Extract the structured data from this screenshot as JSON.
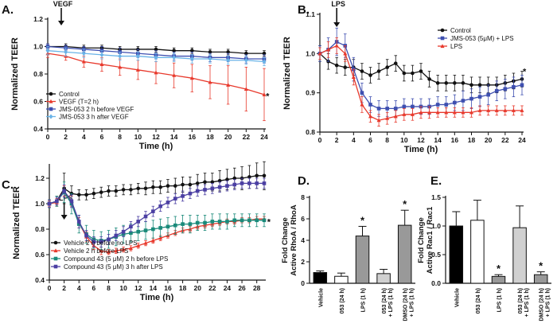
{
  "chart_data": [
    {
      "id": "A",
      "panel_label": "A.",
      "type": "line",
      "annotation": "VEGF",
      "annotation_x": 1.5,
      "xlabel": "Time (h)",
      "ylabel": "Normalized TEER",
      "xlim": [
        0,
        24
      ],
      "ylim": [
        0.4,
        1.2
      ],
      "xticks": [
        0,
        2,
        4,
        6,
        8,
        10,
        12,
        14,
        16,
        18,
        20,
        22,
        24
      ],
      "yticks": [
        0.4,
        0.6,
        0.8,
        1.0,
        1.2
      ],
      "ytick_labels": [
        "0.4",
        "0.6",
        "0.8",
        "1.0",
        "1.2"
      ],
      "star_text": "*",
      "star_x": 24.1,
      "star_y": 0.64,
      "legend_position": "bottom-left",
      "series": [
        {
          "name": "Control",
          "color": "#111111",
          "marker": "circle",
          "x": [
            0,
            2,
            4,
            6,
            8,
            10,
            12,
            14,
            16,
            18,
            20,
            22,
            24
          ],
          "y": [
            1.0,
            1.0,
            0.99,
            0.99,
            0.98,
            0.98,
            0.98,
            0.97,
            0.97,
            0.96,
            0.96,
            0.95,
            0.95
          ],
          "err": [
            0.02,
            0.02,
            0.02,
            0.02,
            0.02,
            0.02,
            0.02,
            0.02,
            0.02,
            0.02,
            0.02,
            0.02,
            0.02
          ]
        },
        {
          "name": "VEGF (T=2 h)",
          "color": "#e8392c",
          "marker": "triangle",
          "x": [
            0,
            2,
            4,
            6,
            8,
            10,
            12,
            14,
            16,
            18,
            20,
            22,
            24
          ],
          "y": [
            0.95,
            0.93,
            0.89,
            0.87,
            0.85,
            0.83,
            0.81,
            0.79,
            0.77,
            0.74,
            0.72,
            0.69,
            0.65
          ],
          "err": [
            0.03,
            0.03,
            0.04,
            0.05,
            0.06,
            0.07,
            0.08,
            0.09,
            0.1,
            0.12,
            0.14,
            0.16,
            0.19
          ]
        },
        {
          "name": "JMS-053 2 h before VEGF",
          "color": "#3e4fb0",
          "marker": "square",
          "x": [
            0,
            2,
            4,
            6,
            8,
            10,
            12,
            14,
            16,
            18,
            20,
            22,
            24
          ],
          "y": [
            1.0,
            0.99,
            0.98,
            0.97,
            0.96,
            0.95,
            0.94,
            0.93,
            0.93,
            0.92,
            0.92,
            0.91,
            0.91
          ],
          "err": [
            0.02,
            0.02,
            0.02,
            0.03,
            0.03,
            0.03,
            0.03,
            0.03,
            0.03,
            0.03,
            0.03,
            0.03,
            0.03
          ]
        },
        {
          "name": "JMS-053 3 h after VEGF",
          "color": "#69b3e7",
          "marker": "diamond",
          "x": [
            0,
            2,
            4,
            6,
            8,
            10,
            12,
            14,
            16,
            18,
            20,
            22,
            24
          ],
          "y": [
            0.97,
            0.96,
            0.95,
            0.94,
            0.93,
            0.93,
            0.92,
            0.92,
            0.91,
            0.91,
            0.9,
            0.9,
            0.89
          ],
          "err": [
            0.03,
            0.03,
            0.03,
            0.03,
            0.03,
            0.03,
            0.03,
            0.03,
            0.03,
            0.03,
            0.03,
            0.03,
            0.03
          ]
        }
      ]
    },
    {
      "id": "B",
      "panel_label": "B.",
      "type": "line",
      "annotation": "LPS",
      "annotation_x": 2,
      "xlabel": "Time (h)",
      "ylabel": "Normalized TEER",
      "xlim": [
        0,
        24
      ],
      "ylim": [
        0.8,
        1.1
      ],
      "xticks": [
        0,
        2,
        4,
        6,
        8,
        10,
        12,
        14,
        16,
        18,
        20,
        22,
        24
      ],
      "yticks": [
        0.8,
        0.9,
        1.0,
        1.1
      ],
      "ytick_labels": [
        "0.8",
        "0.9",
        "1.0",
        "1.1"
      ],
      "star_text": "*",
      "star_x": 24,
      "star_y": 0.955,
      "legend_position": "top-right",
      "series": [
        {
          "name": "Control",
          "color": "#111111",
          "marker": "circle",
          "x": [
            0,
            1,
            2,
            3,
            4,
            5,
            6,
            7,
            8,
            9,
            10,
            11,
            12,
            13,
            14,
            15,
            16,
            17,
            18,
            19,
            20,
            21,
            22,
            23,
            24
          ],
          "y": [
            1.0,
            0.98,
            0.97,
            0.965,
            0.965,
            0.955,
            0.945,
            0.955,
            0.965,
            0.975,
            0.95,
            0.95,
            0.955,
            0.935,
            0.925,
            0.925,
            0.925,
            0.925,
            0.92,
            0.92,
            0.92,
            0.92,
            0.925,
            0.93,
            0.935
          ],
          "err": [
            0.02,
            0.02,
            0.02,
            0.02,
            0.02,
            0.02,
            0.02,
            0.02,
            0.02,
            0.02,
            0.02,
            0.02,
            0.02,
            0.02,
            0.02,
            0.02,
            0.02,
            0.02,
            0.02,
            0.02,
            0.02,
            0.02,
            0.02,
            0.02,
            0.02
          ]
        },
        {
          "name": "JMS-053 (5μM) + LPS",
          "color": "#3e4fb0",
          "marker": "square",
          "x": [
            0,
            1,
            2,
            3,
            4,
            5,
            6,
            7,
            8,
            9,
            10,
            11,
            12,
            13,
            14,
            15,
            16,
            17,
            18,
            19,
            20,
            21,
            22,
            23,
            24
          ],
          "y": [
            1.0,
            1.01,
            1.03,
            1.02,
            0.96,
            0.9,
            0.87,
            0.86,
            0.86,
            0.86,
            0.865,
            0.865,
            0.865,
            0.865,
            0.87,
            0.87,
            0.875,
            0.88,
            0.885,
            0.89,
            0.895,
            0.905,
            0.91,
            0.915,
            0.92
          ],
          "err": [
            0.02,
            0.03,
            0.035,
            0.03,
            0.03,
            0.025,
            0.02,
            0.02,
            0.02,
            0.02,
            0.02,
            0.02,
            0.02,
            0.02,
            0.02,
            0.02,
            0.02,
            0.025,
            0.025,
            0.025,
            0.025,
            0.025,
            0.025,
            0.025,
            0.025
          ]
        },
        {
          "name": "LPS",
          "color": "#e8392c",
          "marker": "triangle",
          "x": [
            0,
            1,
            2,
            3,
            4,
            5,
            6,
            7,
            8,
            9,
            10,
            11,
            12,
            13,
            14,
            15,
            16,
            17,
            18,
            19,
            20,
            21,
            22,
            23,
            24
          ],
          "y": [
            1.0,
            1.01,
            1.02,
            1.0,
            0.94,
            0.87,
            0.84,
            0.83,
            0.835,
            0.84,
            0.845,
            0.845,
            0.85,
            0.85,
            0.85,
            0.85,
            0.85,
            0.85,
            0.85,
            0.855,
            0.855,
            0.855,
            0.855,
            0.855,
            0.855
          ],
          "err": [
            0.015,
            0.02,
            0.02,
            0.02,
            0.02,
            0.02,
            0.015,
            0.015,
            0.015,
            0.015,
            0.015,
            0.015,
            0.015,
            0.015,
            0.012,
            0.012,
            0.012,
            0.012,
            0.012,
            0.012,
            0.012,
            0.012,
            0.012,
            0.012,
            0.012
          ]
        }
      ]
    },
    {
      "id": "C",
      "panel_label": "C.",
      "type": "line",
      "annotation": "LPS",
      "annotation_x": 2,
      "xlabel": "Time (h)",
      "ylabel": "Normalized TEER",
      "xlim": [
        0,
        29
      ],
      "ylim": [
        0.4,
        1.3
      ],
      "xticks": [
        0,
        2,
        4,
        6,
        8,
        10,
        12,
        14,
        16,
        18,
        20,
        22,
        24,
        26,
        28
      ],
      "yticks": [
        0.4,
        0.6,
        0.8,
        1.0,
        1.2
      ],
      "ytick_labels": [
        "0.4",
        "0.6",
        "0.8",
        "1.0",
        "1.2"
      ],
      "star_text": "*",
      "star_x": 29.3,
      "star_y": 0.86,
      "legend_position": "bottom-left",
      "series": [
        {
          "name": "Vehicle 2 h before no LPS",
          "color": "#111111",
          "marker": "circle",
          "x": [
            0,
            1,
            2,
            3,
            4,
            5,
            6,
            7,
            8,
            9,
            10,
            11,
            12,
            13,
            14,
            15,
            16,
            17,
            18,
            19,
            20,
            21,
            22,
            23,
            24,
            25,
            26,
            27,
            28,
            29
          ],
          "y": [
            1.0,
            1.02,
            1.12,
            1.08,
            1.07,
            1.07,
            1.08,
            1.09,
            1.1,
            1.1,
            1.11,
            1.11,
            1.12,
            1.12,
            1.13,
            1.13,
            1.14,
            1.14,
            1.15,
            1.15,
            1.16,
            1.17,
            1.17,
            1.18,
            1.19,
            1.2,
            1.2,
            1.21,
            1.22,
            1.22
          ],
          "err": [
            0.03,
            0.04,
            0.12,
            0.06,
            0.04,
            0.04,
            0.04,
            0.04,
            0.04,
            0.04,
            0.04,
            0.04,
            0.04,
            0.05,
            0.05,
            0.05,
            0.05,
            0.06,
            0.06,
            0.06,
            0.07,
            0.07,
            0.07,
            0.08,
            0.08,
            0.08,
            0.09,
            0.09,
            0.1,
            0.11
          ]
        },
        {
          "name": "Vehicle 2 h before LPS",
          "color": "#e8392c",
          "marker": "triangle",
          "x": [
            0,
            1,
            2,
            3,
            4,
            5,
            6,
            7,
            8,
            9,
            10,
            11,
            12,
            13,
            14,
            15,
            16,
            17,
            18,
            19,
            20,
            21,
            22,
            23,
            24,
            25,
            26,
            27,
            28,
            29
          ],
          "y": [
            1.0,
            1.01,
            1.1,
            1.02,
            0.85,
            0.74,
            0.67,
            0.63,
            0.62,
            0.63,
            0.64,
            0.65,
            0.67,
            0.69,
            0.71,
            0.73,
            0.75,
            0.77,
            0.79,
            0.8,
            0.82,
            0.83,
            0.84,
            0.85,
            0.86,
            0.86,
            0.87,
            0.87,
            0.88,
            0.88
          ],
          "err": [
            0.02,
            0.03,
            0.04,
            0.04,
            0.04,
            0.04,
            0.03,
            0.03,
            0.02,
            0.02,
            0.02,
            0.02,
            0.02,
            0.02,
            0.02,
            0.02,
            0.02,
            0.02,
            0.02,
            0.02,
            0.02,
            0.02,
            0.02,
            0.02,
            0.02,
            0.02,
            0.02,
            0.02,
            0.02,
            0.02
          ]
        },
        {
          "name": "Compound 43 (5 μM) 2 h before LPS",
          "color": "#1a8a7a",
          "marker": "square",
          "x": [
            0,
            1,
            2,
            3,
            4,
            5,
            6,
            7,
            8,
            9,
            10,
            11,
            12,
            13,
            14,
            15,
            16,
            17,
            18,
            19,
            20,
            21,
            22,
            23,
            24,
            25,
            26,
            27,
            28,
            29
          ],
          "y": [
            1.0,
            1.02,
            1.09,
            1.0,
            0.84,
            0.76,
            0.72,
            0.71,
            0.72,
            0.74,
            0.76,
            0.77,
            0.78,
            0.79,
            0.8,
            0.81,
            0.82,
            0.83,
            0.84,
            0.84,
            0.85,
            0.85,
            0.86,
            0.86,
            0.86,
            0.87,
            0.87,
            0.87,
            0.87,
            0.87
          ],
          "err": [
            0.03,
            0.04,
            0.08,
            0.08,
            0.07,
            0.07,
            0.07,
            0.07,
            0.07,
            0.07,
            0.07,
            0.07,
            0.07,
            0.07,
            0.07,
            0.07,
            0.07,
            0.07,
            0.07,
            0.07,
            0.06,
            0.06,
            0.06,
            0.06,
            0.06,
            0.05,
            0.05,
            0.05,
            0.05,
            0.05
          ]
        },
        {
          "name": "Compound 43 (5 μM) 3 h after LPS",
          "color": "#4b3fa3",
          "marker": "square",
          "x": [
            0,
            1,
            2,
            3,
            4,
            5,
            6,
            7,
            8,
            9,
            10,
            11,
            12,
            13,
            14,
            15,
            16,
            17,
            18,
            19,
            20,
            21,
            22,
            23,
            24,
            25,
            26,
            27,
            28,
            29
          ],
          "y": [
            1.0,
            1.02,
            1.1,
            1.02,
            0.86,
            0.75,
            0.7,
            0.7,
            0.72,
            0.75,
            0.78,
            0.82,
            0.86,
            0.9,
            0.94,
            0.98,
            1.01,
            1.04,
            1.06,
            1.08,
            1.1,
            1.11,
            1.12,
            1.13,
            1.14,
            1.15,
            1.16,
            1.16,
            1.16,
            1.16
          ],
          "err": [
            0.03,
            0.03,
            0.05,
            0.05,
            0.05,
            0.04,
            0.04,
            0.04,
            0.04,
            0.04,
            0.04,
            0.04,
            0.04,
            0.04,
            0.04,
            0.04,
            0.04,
            0.04,
            0.04,
            0.04,
            0.04,
            0.04,
            0.04,
            0.04,
            0.04,
            0.04,
            0.04,
            0.04,
            0.04,
            0.04
          ]
        }
      ]
    },
    {
      "id": "D",
      "panel_label": "D.",
      "type": "bar",
      "ylabel_lines": [
        "Fold Change",
        "Active RhoA / RhoA"
      ],
      "ylim": [
        0,
        8
      ],
      "yticks": [
        0,
        2,
        4,
        6,
        8
      ],
      "ytick_labels": [
        "0",
        "2",
        "4",
        "6",
        "8"
      ],
      "categories": [
        [
          "Vehicle"
        ],
        [
          "053 (24 h)"
        ],
        [
          "LPS (1 h)"
        ],
        [
          "053 (24 h)",
          "+ LPS (1 h)"
        ],
        [
          "DMSO (24 h)",
          "+ LPS (1 h)"
        ]
      ],
      "values": [
        1.0,
        0.65,
        4.4,
        0.9,
        5.4
      ],
      "errors": [
        0.15,
        0.3,
        0.9,
        0.4,
        1.4
      ],
      "colors": [
        "#000000",
        "#ffffff",
        "#999999",
        "#d0d0d0",
        "#999999"
      ],
      "stars": [
        "",
        "",
        "*",
        "",
        "*"
      ]
    },
    {
      "id": "E",
      "panel_label": "E.",
      "type": "bar",
      "ylabel_lines": [
        "Fold Change",
        "Active Rac1 / Rac1"
      ],
      "ylim": [
        0,
        1.5
      ],
      "yticks": [
        0,
        0.5,
        1.0,
        1.5
      ],
      "ytick_labels": [
        "0.0",
        "0.5",
        "1.0",
        "1.5"
      ],
      "categories": [
        [
          "Vehicle"
        ],
        [
          "053 (24 h)"
        ],
        [
          "LPS (1 h)"
        ],
        [
          "053 (24 h)",
          "+ LPS (1 h)"
        ],
        [
          "DMSO (24 h)",
          "+ LPS (1 h)"
        ]
      ],
      "values": [
        1.0,
        1.1,
        0.12,
        0.97,
        0.15
      ],
      "errors": [
        0.25,
        0.35,
        0.03,
        0.38,
        0.05
      ],
      "colors": [
        "#000000",
        "#ffffff",
        "#999999",
        "#d0d0d0",
        "#999999"
      ],
      "stars": [
        "",
        "",
        "*",
        "",
        "*"
      ]
    }
  ]
}
